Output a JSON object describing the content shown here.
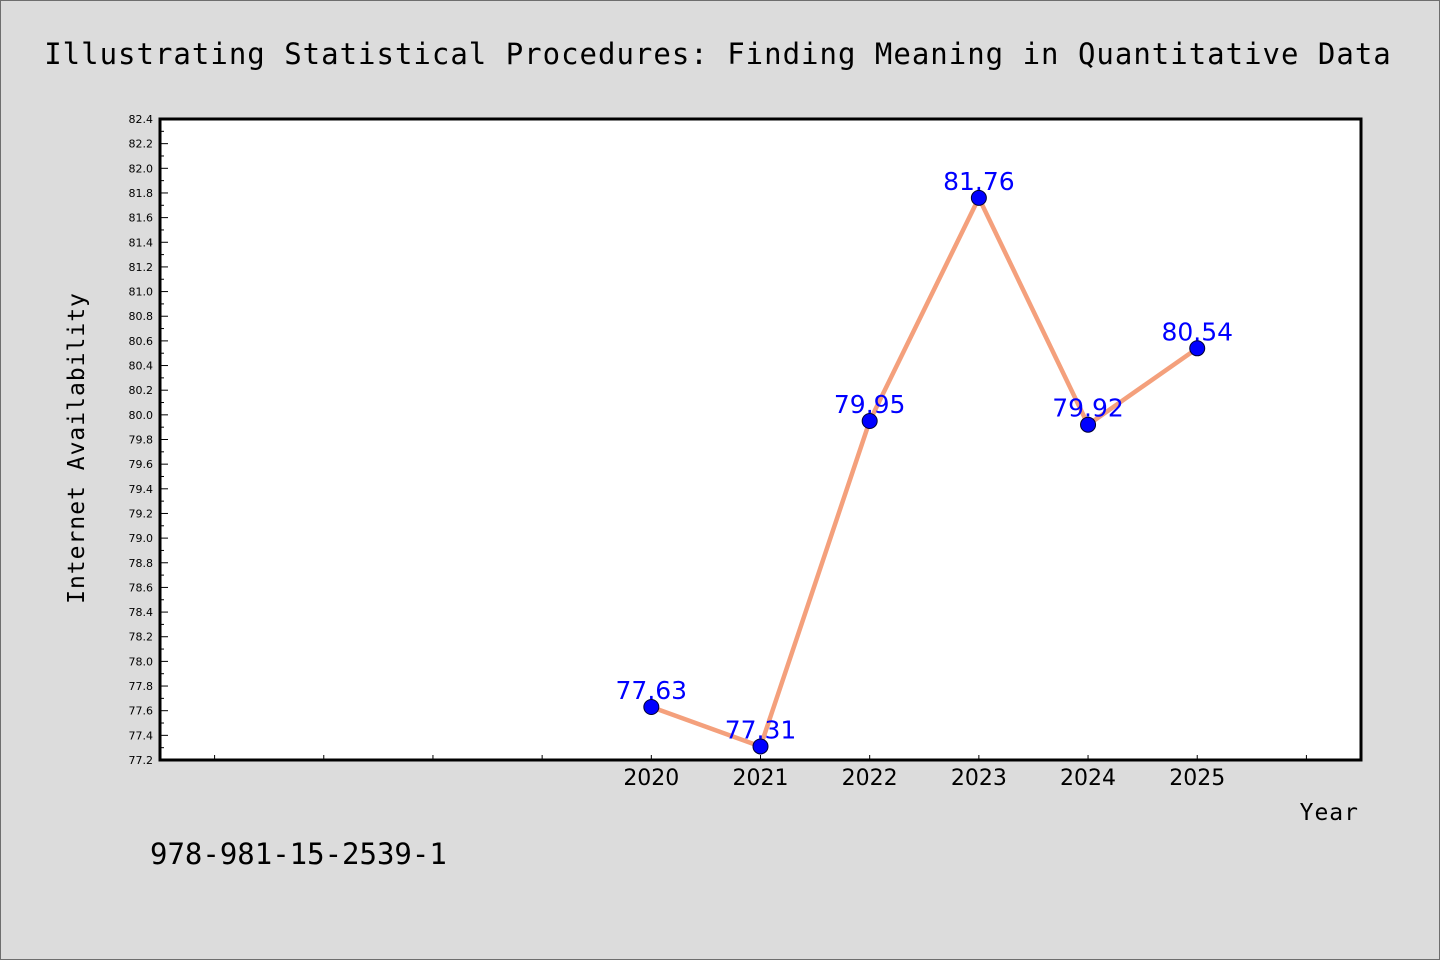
{
  "chart_data": {
    "type": "line",
    "title": "Illustrating Statistical Procedures: Finding Meaning in Quantitative Data",
    "xlabel": "Year",
    "ylabel": "Internet Availability",
    "x": [
      2020,
      2021,
      2022,
      2023,
      2024,
      2025
    ],
    "x_tick_labels": [
      "2020",
      "2021",
      "2022",
      "2023",
      "2024",
      "2025"
    ],
    "xlim": [
      2015.5,
      2026.5
    ],
    "series": [
      {
        "values": [
          77.63,
          77.31,
          79.95,
          81.76,
          79.92,
          80.54
        ],
        "labels": [
          "77.63",
          "77.31",
          "79.95",
          "81.76",
          "79.92",
          "80.54"
        ],
        "line_color": "#f4a07c",
        "marker_color": "#0000ff"
      }
    ],
    "ylim": [
      77.2,
      82.4
    ],
    "y_tick_step": 0.2,
    "grid": false,
    "legend": "none"
  },
  "footer": {
    "code": "978-981-15-2539-1"
  },
  "colors": {
    "background": "#dcdcdc",
    "plot_area": "#ffffff",
    "label_color": "#0000ff"
  }
}
